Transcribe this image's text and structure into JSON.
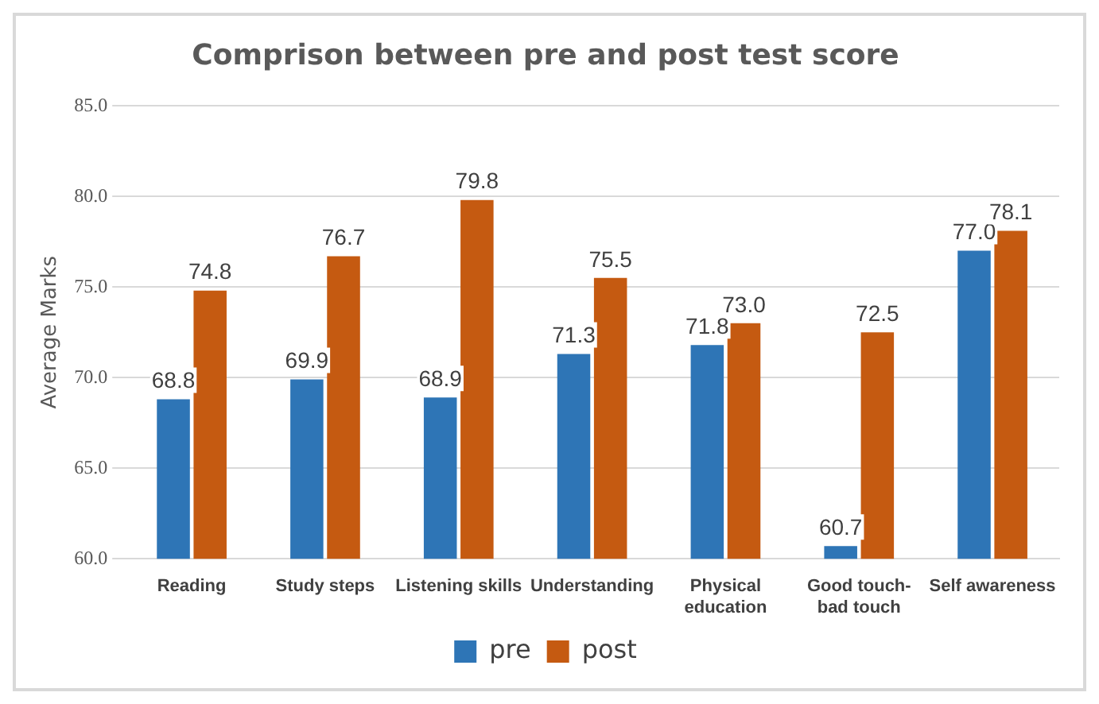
{
  "chart_data": {
    "type": "bar",
    "title": "Comprison between pre and post test score",
    "ylabel": "Average Marks",
    "categories": [
      "Reading",
      "Study steps",
      "Listening skills",
      "Understanding",
      "Physical education",
      "Good touch-bad touch",
      "Self awareness"
    ],
    "series": [
      {
        "name": "pre",
        "color": "#2e75b6",
        "values": [
          68.8,
          69.9,
          68.9,
          71.3,
          71.8,
          60.7,
          77.0
        ],
        "value_labels": [
          "68.8",
          "69.9",
          "68.9",
          "71.3",
          "71.8",
          "60.7",
          "77.0"
        ]
      },
      {
        "name": "post",
        "color": "#c55a11",
        "values": [
          74.8,
          76.7,
          79.8,
          75.5,
          73.0,
          72.5,
          78.1
        ],
        "value_labels": [
          "74.8",
          "76.7",
          "79.8",
          "75.5",
          "73.0",
          "72.5",
          "78.1"
        ]
      }
    ],
    "ylim": [
      60,
      85
    ],
    "yticks": [
      {
        "value": 60,
        "label": "60.0"
      },
      {
        "value": 65,
        "label": "65.0"
      },
      {
        "value": 70,
        "label": "70.0"
      },
      {
        "value": 75,
        "label": "75.0"
      },
      {
        "value": 80,
        "label": "80.0"
      },
      {
        "value": 85,
        "label": "85.0"
      }
    ],
    "grid": "y",
    "legend": "bottom"
  }
}
